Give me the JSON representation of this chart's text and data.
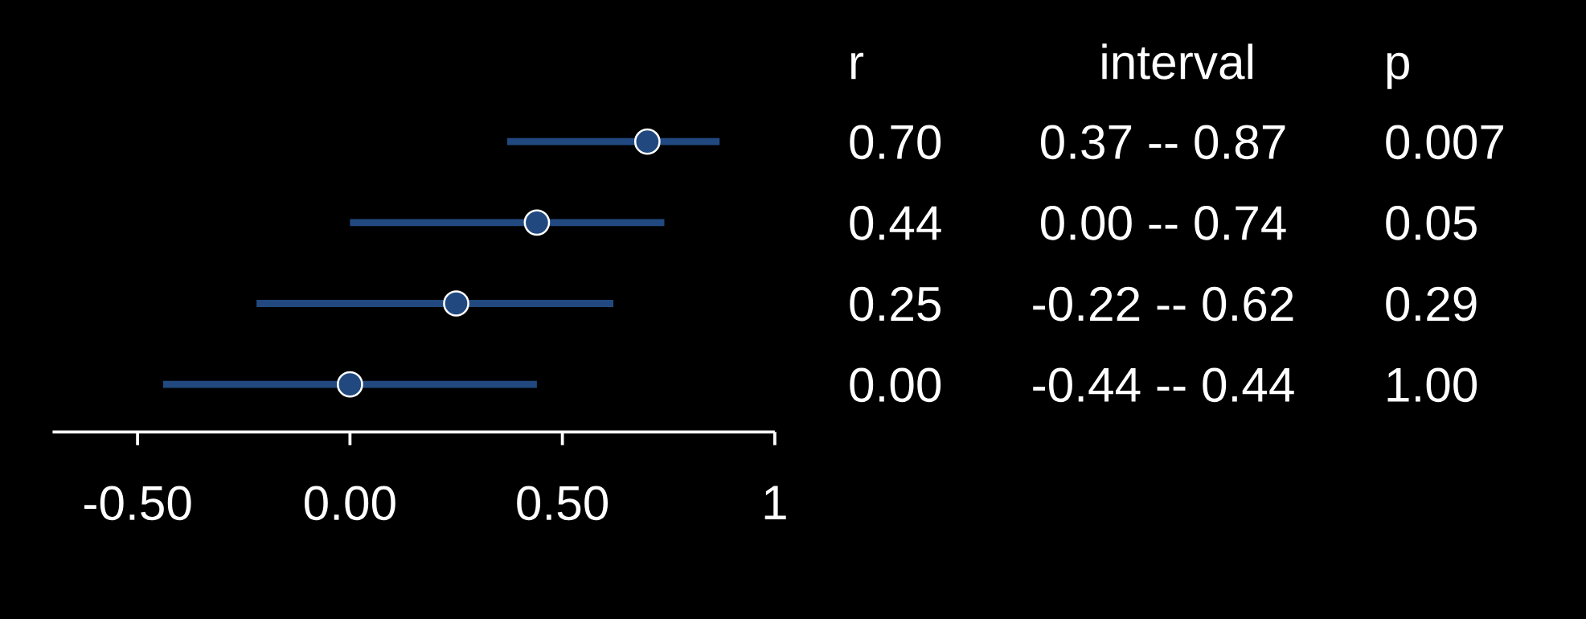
{
  "chart_data": {
    "type": "scatter",
    "orientation": "horizontal",
    "categories": [
      "0.70",
      "0.44",
      "0.25",
      "0.00"
    ],
    "values": [
      0.7,
      0.44,
      0.25,
      0.0
    ],
    "errors": [
      [
        0.37,
        0.87
      ],
      [
        0.0,
        0.74
      ],
      [
        -0.22,
        0.62
      ],
      [
        -0.44,
        0.44
      ]
    ],
    "color": "#21497f",
    "xlim": [
      -0.7,
      1.0
    ],
    "xticks": [
      {
        "value": -0.5,
        "label": "-0.50"
      },
      {
        "value": 0,
        "label": "0.00"
      },
      {
        "value": 0.5,
        "label": "0.50"
      },
      {
        "value": 1,
        "label": "1"
      }
    ],
    "marker": "circle",
    "annotations": [
      "r",
      "interval",
      "p",
      "0.37 -- 0.87",
      "0.007",
      "0.00 -- 0.74",
      "0.05",
      "-0.22 -- 0.62",
      "0.29",
      "-0.44 -- 0.44",
      "1.00"
    ]
  }
}
